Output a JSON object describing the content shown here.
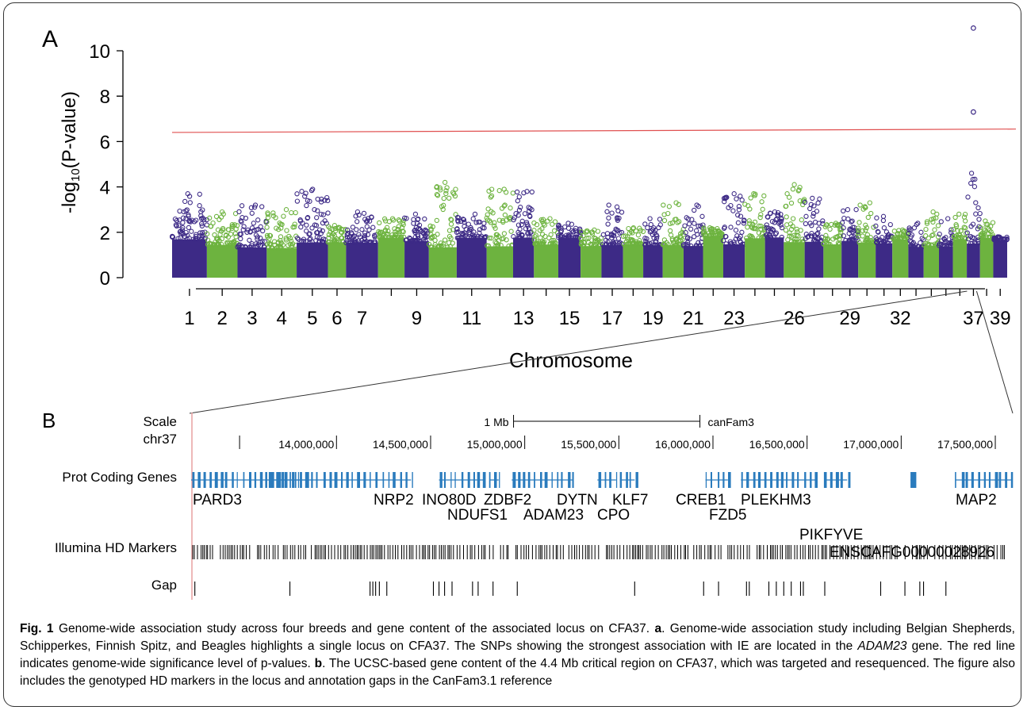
{
  "panel_a": {
    "label": "A",
    "ylabel_prefix": "-log",
    "ylabel_sub": "10",
    "ylabel_suffix": "(P-value)",
    "xlabel": "Chromosome",
    "colors": {
      "odd": "#3d2a86",
      "even": "#6db33f",
      "threshold": "#e05050",
      "zoom_line": "#333333"
    }
  },
  "chart_data": {
    "type": "scatter",
    "title": "",
    "xlabel": "Chromosome",
    "ylabel": "-log10(P-value)",
    "ylim": [
      0,
      11
    ],
    "yticks": [
      "0",
      "2",
      "4",
      "6",
      "8",
      "10"
    ],
    "x_tick_labels": [
      "1",
      "2",
      "3",
      "4",
      "5",
      "6",
      "7",
      "9",
      "11",
      "13",
      "15",
      "17",
      "19",
      "21",
      "23",
      "26",
      "29",
      "32",
      "37",
      "39"
    ],
    "chromosomes": [
      1,
      2,
      3,
      4,
      5,
      6,
      7,
      8,
      9,
      10,
      11,
      12,
      13,
      14,
      15,
      16,
      17,
      18,
      19,
      20,
      21,
      22,
      23,
      24,
      25,
      26,
      27,
      28,
      29,
      30,
      31,
      32,
      33,
      34,
      35,
      36,
      37,
      38,
      39
    ],
    "chromosome_peak_values": [
      3.7,
      2.9,
      3.2,
      3.0,
      3.9,
      2.3,
      2.9,
      2.6,
      2.8,
      4.2,
      2.8,
      3.9,
      3.8,
      2.6,
      2.4,
      2.1,
      3.2,
      2.2,
      2.6,
      3.3,
      3.2,
      2.2,
      3.7,
      3.7,
      2.9,
      4.1,
      3.5,
      2.4,
      3.0,
      3.3,
      2.7,
      2.1,
      2.4,
      2.9,
      2.6,
      2.8,
      11.0,
      2.5,
      1.8
    ],
    "significance_threshold": [
      6.4,
      6.55
    ],
    "top_snps": [
      {
        "chromosome": 37,
        "value": 11.0
      },
      {
        "chromosome": 37,
        "value": 7.3
      }
    ]
  },
  "panel_b": {
    "label": "B",
    "scale_label": "Scale",
    "chr_label": "chr37",
    "scale_bar_text": "1 Mb",
    "assembly": "canFam3",
    "positions": [
      "14,000,000",
      "14,500,000",
      "15,000,000",
      "15,500,000",
      "16,000,000",
      "16,500,000",
      "17,000,000",
      "17,500,000"
    ],
    "gene_track_label": "Prot Coding Genes",
    "gene_color": "#2a7bbd",
    "genes": [
      {
        "name": "PARD3",
        "start": 1.0,
        "end": 5.5,
        "row": 1
      },
      {
        "name": "NRP2",
        "start": 10.5,
        "end": 11.5,
        "row": 1
      },
      {
        "name": "INO80D",
        "start": 13.3,
        "end": 15.7,
        "row": 1
      },
      {
        "name": "ZDBF2",
        "start": 16.0,
        "end": 16.5,
        "row": 1
      },
      {
        "name": "NDUFS1",
        "start": 14.7,
        "end": 14.7,
        "row": 2
      },
      {
        "name": "ADAM23",
        "start": 18.0,
        "end": 19.5,
        "row": 2
      },
      {
        "name": "DYTN",
        "start": 19.8,
        "end": 20.5,
        "row": 1
      },
      {
        "name": "CPO",
        "start": 22.2,
        "end": 22.5,
        "row": 2
      },
      {
        "name": "KLF7",
        "start": 23.0,
        "end": 23.5,
        "row": 1
      },
      {
        "name": "CREB1",
        "start": 27.6,
        "end": 28.2,
        "row": 1
      },
      {
        "name": "FZD5",
        "start": 29.3,
        "end": 29.6,
        "row": 2
      },
      {
        "name": "PLEKHM3",
        "start": 29.6,
        "end": 33.5,
        "row": 1
      },
      {
        "name": "PIKFYVE",
        "start": 34.7,
        "end": 35.5,
        "row": 3
      },
      {
        "name": "ENSCAFG00000028926",
        "start": 39.4,
        "end": 39.4,
        "row": 4
      },
      {
        "name": "MAP2",
        "start": 41.0,
        "end": 43.6,
        "row": 1
      }
    ],
    "markers_label": "Illumina HD Markers",
    "gap_label": "Gap"
  },
  "caption": {
    "fig": "Fig. 1",
    "t1": " Genome-wide association study across four breeds and gene content of the associated locus on CFA37. ",
    "a": "a",
    "t2": ". Genome-wide association study including Belgian Shepherds, Schipperkes, Finnish Spitz, and Beagles highlights a single locus on CFA37. The SNPs showing the strongest association with IE are located in the ",
    "gene": "ADAM23",
    "t3": " gene. The red line indicates genome-wide significance level of p-values. ",
    "b": "b",
    "t4": ". The UCSC-based gene content of the 4.4 Mb critical region on CFA37, which was targeted and resequenced. The figure also includes the genotyped HD markers in the locus and annotation gaps in the CanFam3.1 reference"
  }
}
